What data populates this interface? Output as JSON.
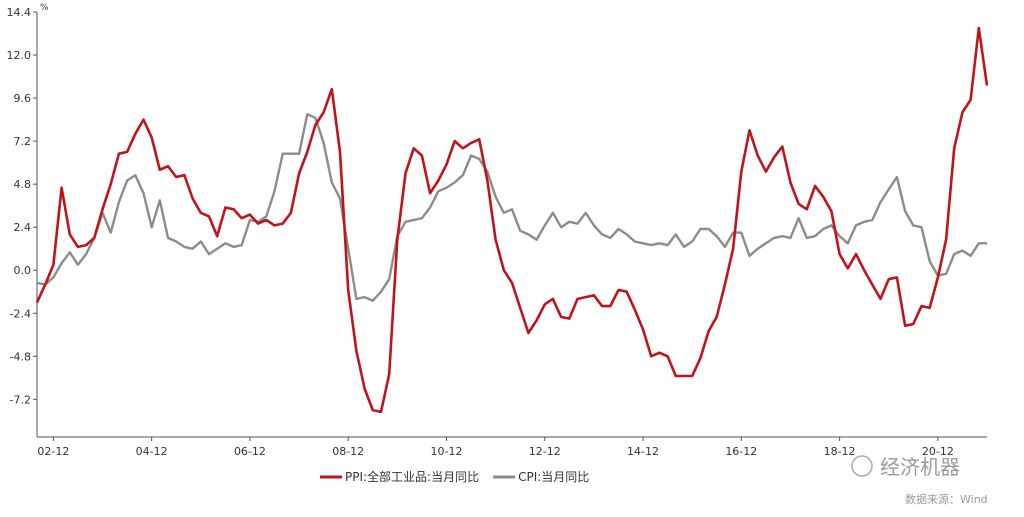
{
  "chart_data": {
    "type": "line",
    "y_unit": "%",
    "categories": [
      null,
      null,
      "02-12",
      null,
      null,
      null,
      null,
      null,
      null,
      null,
      null,
      null,
      null,
      null,
      "04-12",
      null,
      null,
      null,
      null,
      null,
      null,
      null,
      null,
      null,
      null,
      null,
      "06-12",
      null,
      null,
      null,
      null,
      null,
      null,
      null,
      null,
      null,
      null,
      null,
      "08-12",
      null,
      null,
      null,
      null,
      null,
      null,
      null,
      null,
      null,
      null,
      null,
      "10-12",
      null,
      null,
      null,
      null,
      null,
      null,
      null,
      null,
      null,
      null,
      null,
      "12-12",
      null,
      null,
      null,
      null,
      null,
      null,
      null,
      null,
      null,
      null,
      null,
      "14-12",
      null,
      null,
      null,
      null,
      null,
      null,
      null,
      null,
      null,
      null,
      null,
      "16-12",
      null,
      null,
      null,
      null,
      null,
      null,
      null,
      null,
      null,
      null,
      null,
      "18-12",
      null,
      null,
      null,
      null,
      null,
      null,
      null,
      null,
      null,
      null,
      null,
      "20-12",
      null,
      null,
      null,
      null,
      null,
      null
    ],
    "series": [
      {
        "name": "PPI:全部工业品:当月同比",
        "color": "#c0141c",
        "values": [
          -1.8,
          -0.8,
          0.3,
          4.6,
          2.0,
          1.3,
          1.4,
          1.8,
          3.4,
          4.8,
          6.5,
          6.6,
          7.6,
          8.4,
          7.4,
          5.6,
          5.8,
          5.2,
          5.3,
          4.0,
          3.2,
          3.0,
          1.9,
          3.5,
          3.4,
          2.9,
          3.1,
          2.6,
          2.8,
          2.5,
          2.6,
          3.2,
          5.4,
          6.6,
          8.1,
          8.8,
          10.1,
          6.6,
          -1.1,
          -4.5,
          -6.6,
          -7.8,
          -7.9,
          -5.8,
          1.7,
          5.4,
          6.8,
          6.4,
          4.3,
          5.0,
          5.9,
          7.2,
          6.8,
          7.1,
          7.3,
          5.0,
          1.7,
          0.0,
          -0.7,
          -2.1,
          -3.5,
          -2.8,
          -1.9,
          -1.6,
          -2.6,
          -2.7,
          -1.6,
          -1.5,
          -1.4,
          -2.0,
          -2.0,
          -1.1,
          -1.2,
          -2.2,
          -3.3,
          -4.8,
          -4.6,
          -4.8,
          -5.9,
          -5.9,
          -5.9,
          -4.9,
          -3.4,
          -2.6,
          -0.8,
          1.2,
          5.5,
          7.8,
          6.4,
          5.5,
          6.3,
          6.9,
          4.9,
          3.7,
          3.4,
          4.7,
          4.1,
          3.3,
          0.9,
          0.1,
          0.9,
          0.0,
          -0.8,
          -1.6,
          -0.5,
          -0.4,
          -3.1,
          -3.0,
          -2.0,
          -2.1,
          -0.4,
          1.7,
          6.8,
          8.8,
          9.5,
          13.5,
          10.3
        ]
      },
      {
        "name": "CPI:当月同比",
        "color": "#8c8c8c",
        "values": [
          -0.7,
          -0.8,
          -0.4,
          0.4,
          1.0,
          0.3,
          0.9,
          1.8,
          3.2,
          2.1,
          3.8,
          5.0,
          5.3,
          4.3,
          2.4,
          3.9,
          1.8,
          1.6,
          1.3,
          1.2,
          1.6,
          0.9,
          1.2,
          1.5,
          1.3,
          1.4,
          2.8,
          2.7,
          3.0,
          4.4,
          6.5,
          6.5,
          6.5,
          8.7,
          8.5,
          7.1,
          4.9,
          4.0,
          1.2,
          -1.6,
          -1.5,
          -1.7,
          -1.2,
          -0.5,
          1.9,
          2.7,
          2.8,
          2.9,
          3.5,
          4.4,
          4.6,
          4.9,
          5.3,
          6.4,
          6.2,
          5.5,
          4.1,
          3.2,
          3.4,
          2.2,
          2.0,
          1.7,
          2.5,
          3.2,
          2.4,
          2.7,
          2.6,
          3.2,
          2.5,
          2.0,
          1.8,
          2.3,
          2.0,
          1.6,
          1.5,
          1.4,
          1.5,
          1.4,
          2.0,
          1.3,
          1.6,
          2.3,
          2.3,
          1.9,
          1.3,
          2.1,
          2.1,
          0.8,
          1.2,
          1.5,
          1.8,
          1.9,
          1.8,
          2.9,
          1.8,
          1.9,
          2.3,
          2.5,
          1.9,
          1.5,
          2.5,
          2.7,
          2.8,
          3.8,
          4.5,
          5.2,
          3.3,
          2.5,
          2.4,
          0.5,
          -0.3,
          -0.2,
          0.9,
          1.1,
          0.8,
          1.5,
          1.5
        ]
      }
    ],
    "ylim": [
      -9.3,
      14.4
    ],
    "yticks": [
      -7.2,
      -4.8,
      -2.4,
      {
        "value": 0,
        "label": "0.0"
      },
      2.4,
      4.8,
      7.2,
      9.6,
      {
        "value": 12,
        "label": "12.0"
      },
      14.4
    ],
    "legend": "bottom",
    "watermark": "经济机器",
    "source": "数据来源：Wind"
  }
}
